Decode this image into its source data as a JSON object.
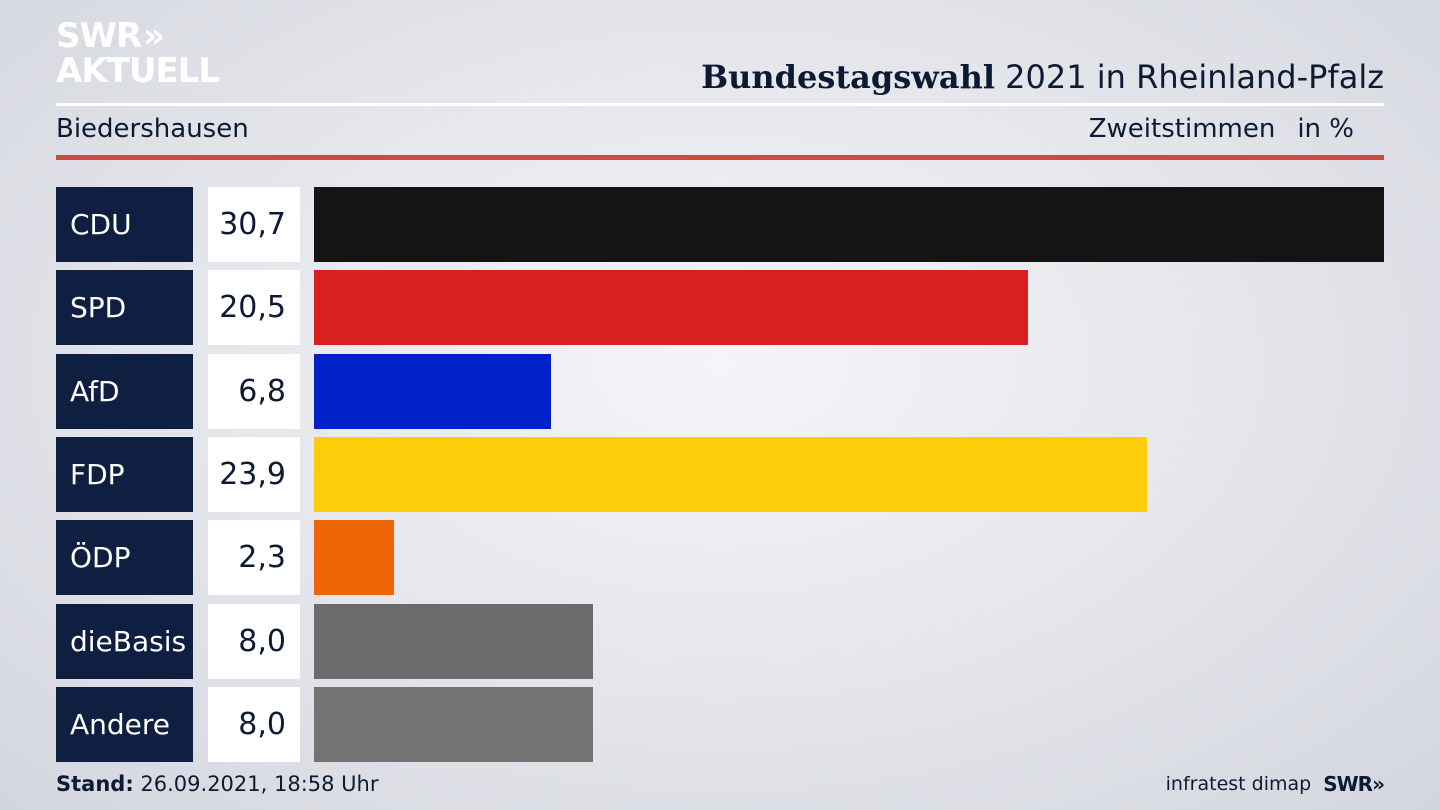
{
  "logo": {
    "line1": "SWR",
    "chevrons": "»",
    "line2": "AKTUELL"
  },
  "header": {
    "title_bold": "Bundestagswahl",
    "title_rest": " 2021 in Rheinland-Pfalz",
    "location": "Biedershausen",
    "measure": "Zweitstimmen",
    "unit": "in %"
  },
  "chart_data": {
    "type": "bar",
    "orientation": "horizontal",
    "categories": [
      "CDU",
      "SPD",
      "AfD",
      "FDP",
      "ÖDP",
      "dieBasis",
      "Andere"
    ],
    "values": [
      30.7,
      20.5,
      6.8,
      23.9,
      2.3,
      8.0,
      8.0
    ],
    "value_labels": [
      "30,7",
      "20,5",
      "6,8",
      "23,9",
      "2,3",
      "8,0",
      "8,0"
    ],
    "colors": [
      "#141414",
      "#d92020",
      "#0020c8",
      "#fdcc0a",
      "#ee6406",
      "#6b6b6b",
      "#737374"
    ],
    "xlim": [
      0,
      30.7
    ],
    "grid": false
  },
  "footer": {
    "stand_label": "Stand:",
    "stand_value": " 26.09.2021, 18:58 Uhr",
    "source": "infratest dimap",
    "brand": "SWR»"
  }
}
